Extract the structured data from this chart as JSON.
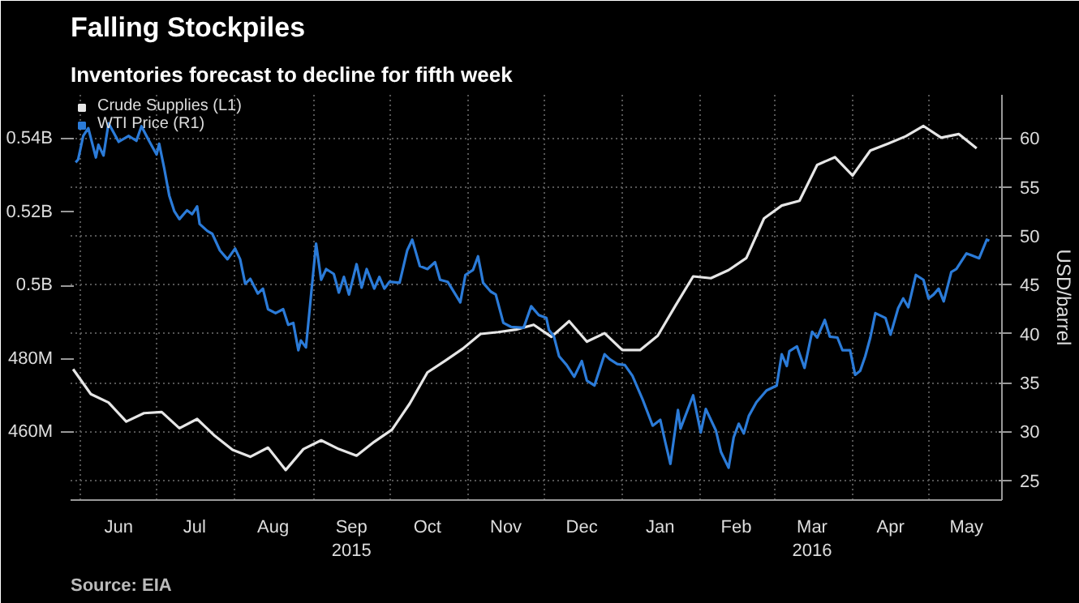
{
  "chart_data": {
    "type": "line",
    "title": "Falling Stockpiles",
    "subtitle": "Inventories forecast to decline for fifth week",
    "y2label": "USD/barrel",
    "annotations": [
      "Source: EIA"
    ],
    "legend": "top left",
    "grid": true,
    "line_style": "solid",
    "marker": "none",
    "xlim": [
      "2015-05-28",
      "2016-05-30"
    ],
    "xticks": [
      {
        "value": "2015-06-01",
        "label": null
      },
      {
        "value": "2015-06-16",
        "label": "Jun"
      },
      {
        "value": "2015-07-01",
        "label": null
      },
      {
        "value": "2015-07-16",
        "label": "Jul"
      },
      {
        "value": "2015-08-01",
        "label": null
      },
      {
        "value": "2015-08-16",
        "label": "Aug"
      },
      {
        "value": "2015-09-01",
        "label": null
      },
      {
        "value": "2015-09-16",
        "label": "Sep\n2015"
      },
      {
        "value": "2015-10-01",
        "label": null
      },
      {
        "value": "2015-10-16",
        "label": "Oct"
      },
      {
        "value": "2015-11-01",
        "label": null
      },
      {
        "value": "2015-11-16",
        "label": "Nov"
      },
      {
        "value": "2015-12-01",
        "label": null
      },
      {
        "value": "2015-12-16",
        "label": "Dec"
      },
      {
        "value": "2016-01-01",
        "label": null
      },
      {
        "value": "2016-01-16",
        "label": "Jan"
      },
      {
        "value": "2016-02-01",
        "label": null
      },
      {
        "value": "2016-02-15",
        "label": "Feb"
      },
      {
        "value": "2016-03-01",
        "label": null
      },
      {
        "value": "2016-03-16",
        "label": "Mar\n2016"
      },
      {
        "value": "2016-04-01",
        "label": null
      },
      {
        "value": "2016-04-16",
        "label": "Apr"
      },
      {
        "value": "2016-05-01",
        "label": null
      },
      {
        "value": "2016-05-16",
        "label": "May"
      }
    ],
    "ylim": [
      441500000,
      552000000
    ],
    "yticks": [
      {
        "value": 460000000,
        "label": "460M"
      },
      {
        "value": 480000000,
        "label": "480M"
      },
      {
        "value": 500000000,
        "label": "0.5B"
      },
      {
        "value": 520000000,
        "label": "0.52B"
      },
      {
        "value": 540000000,
        "label": "0.54B"
      }
    ],
    "y2lim": [
      23,
      64.4
    ],
    "y2ticks": [
      25,
      30,
      35,
      40,
      45,
      50,
      55,
      60
    ],
    "series": [
      {
        "name": "Crude Supplies (L1)",
        "color": "#e6e6e6",
        "x": [
          "2015-05-29",
          "2015-06-05",
          "2015-06-12",
          "2015-06-19",
          "2015-06-26",
          "2015-07-03",
          "2015-07-10",
          "2015-07-17",
          "2015-07-24",
          "2015-07-31",
          "2015-08-07",
          "2015-08-14",
          "2015-08-21",
          "2015-08-28",
          "2015-09-04",
          "2015-09-11",
          "2015-09-18",
          "2015-09-25",
          "2015-10-02",
          "2015-10-09",
          "2015-10-16",
          "2015-10-23",
          "2015-10-30",
          "2015-11-06",
          "2015-11-13",
          "2015-11-20",
          "2015-11-27",
          "2015-12-04",
          "2015-12-11",
          "2015-12-18",
          "2015-12-25",
          "2016-01-01",
          "2016-01-08",
          "2016-01-15",
          "2016-01-22",
          "2016-01-29",
          "2016-02-05",
          "2016-02-12",
          "2016-02-19",
          "2016-02-26",
          "2016-03-04",
          "2016-03-11",
          "2016-03-18",
          "2016-03-25",
          "2016-04-01",
          "2016-04-08",
          "2016-04-15",
          "2016-04-22",
          "2016-04-29",
          "2016-05-06",
          "2016-05-13",
          "2016-05-20"
        ],
        "values": [
          477200000,
          470400000,
          468100000,
          462900000,
          465200000,
          465500000,
          461100000,
          463600000,
          459000000,
          455200000,
          453300000,
          455800000,
          449700000,
          455400000,
          457800000,
          455400000,
          453600000,
          457400000,
          460700000,
          467800000,
          476300000,
          479500000,
          482800000,
          486800000,
          487300000,
          488000000,
          489300000,
          486000000,
          490300000,
          484700000,
          487000000,
          482400000,
          482400000,
          486300000,
          494500000,
          502500000,
          502000000,
          504200000,
          507500000,
          518300000,
          521800000,
          523100000,
          532900000,
          535000000,
          530000000,
          536800000,
          538700000,
          540700000,
          543500000,
          540300000,
          541300000,
          537400000
        ]
      },
      {
        "name": "WTI Price (R1)",
        "color": "#2b7bd8",
        "axis": "y2",
        "x": [
          "2015-05-30",
          "2015-05-31",
          "2015-06-02",
          "2015-06-04",
          "2015-06-07",
          "2015-06-08",
          "2015-06-10",
          "2015-06-12",
          "2015-06-16",
          "2015-06-20",
          "2015-06-23",
          "2015-06-25",
          "2015-06-28",
          "2015-07-01",
          "2015-07-02",
          "2015-07-04",
          "2015-07-06",
          "2015-07-08",
          "2015-07-10",
          "2015-07-13",
          "2015-07-15",
          "2015-07-17",
          "2015-07-18",
          "2015-07-21",
          "2015-07-23",
          "2015-07-26",
          "2015-07-29",
          "2015-08-01",
          "2015-08-03",
          "2015-08-05",
          "2015-08-07",
          "2015-08-10",
          "2015-08-12",
          "2015-08-14",
          "2015-08-17",
          "2015-08-20",
          "2015-08-22",
          "2015-08-24",
          "2015-08-26",
          "2015-08-27",
          "2015-08-29",
          "2015-09-02",
          "2015-09-04",
          "2015-09-06",
          "2015-09-09",
          "2015-09-11",
          "2015-09-13",
          "2015-09-15",
          "2015-09-18",
          "2015-09-20",
          "2015-09-22",
          "2015-09-25",
          "2015-09-27",
          "2015-09-29",
          "2015-10-01",
          "2015-10-05",
          "2015-10-08",
          "2015-10-10",
          "2015-10-13",
          "2015-10-16",
          "2015-10-19",
          "2015-10-21",
          "2015-10-24",
          "2015-10-29",
          "2015-10-31",
          "2015-11-03",
          "2015-11-05",
          "2015-11-07",
          "2015-11-10",
          "2015-11-12",
          "2015-11-15",
          "2015-11-18",
          "2015-11-23",
          "2015-11-26",
          "2015-11-29",
          "2015-12-02",
          "2015-12-03",
          "2015-12-05",
          "2015-12-07",
          "2015-12-10",
          "2015-12-13",
          "2015-12-16",
          "2015-12-18",
          "2015-12-21",
          "2015-12-25",
          "2015-12-27",
          "2015-12-30",
          "2016-01-02",
          "2016-01-05",
          "2016-01-09",
          "2016-01-13",
          "2016-01-16",
          "2016-01-18",
          "2016-01-20",
          "2016-01-23",
          "2016-01-24",
          "2016-01-29",
          "2016-02-01",
          "2016-02-03",
          "2016-02-07",
          "2016-02-09",
          "2016-02-12",
          "2016-02-14",
          "2016-02-16",
          "2016-02-18",
          "2016-02-20",
          "2016-02-23",
          "2016-02-27",
          "2016-03-02",
          "2016-03-04",
          "2016-03-06",
          "2016-03-07",
          "2016-03-10",
          "2016-03-13",
          "2016-03-16",
          "2016-03-18",
          "2016-03-21",
          "2016-03-23",
          "2016-03-26",
          "2016-03-28",
          "2016-03-31",
          "2016-04-02",
          "2016-04-04",
          "2016-04-06",
          "2016-04-08",
          "2016-04-10",
          "2016-04-14",
          "2016-04-16",
          "2016-04-19",
          "2016-04-21",
          "2016-04-23",
          "2016-04-26",
          "2016-04-29",
          "2016-05-01",
          "2016-05-03",
          "2016-05-05",
          "2016-05-07",
          "2016-05-10",
          "2016-05-12",
          "2016-05-16",
          "2016-05-18",
          "2016-05-21",
          "2016-05-24",
          "2016-05-25"
        ],
        "values": [
          57.5,
          57.8,
          60.2,
          61.0,
          58.0,
          59.3,
          58.2,
          61.5,
          59.6,
          60.2,
          59.7,
          61.2,
          59.7,
          58.3,
          59.4,
          56.9,
          54.1,
          52.5,
          51.7,
          52.6,
          52.2,
          53.0,
          51.2,
          50.5,
          50.2,
          48.5,
          47.6,
          48.7,
          47.6,
          45.1,
          45.6,
          44.1,
          44.6,
          42.5,
          42.1,
          42.5,
          40.9,
          41.1,
          38.3,
          39.3,
          38.6,
          49.2,
          45.5,
          46.6,
          46.1,
          44.2,
          45.8,
          44.0,
          47.1,
          44.7,
          46.6,
          44.6,
          45.8,
          44.6,
          45.3,
          45.2,
          48.5,
          49.6,
          46.9,
          46.6,
          47.3,
          45.5,
          45.3,
          43.2,
          46.0,
          46.5,
          47.9,
          45.2,
          44.3,
          44.0,
          41.1,
          40.7,
          40.6,
          42.8,
          41.9,
          41.6,
          40.4,
          39.7,
          37.7,
          36.8,
          35.6,
          37.2,
          35.2,
          34.7,
          37.9,
          37.4,
          36.9,
          36.8,
          35.7,
          33.3,
          30.6,
          31.2,
          28.9,
          26.7,
          32.2,
          30.3,
          33.7,
          29.9,
          32.3,
          30.1,
          27.9,
          26.3,
          29.4,
          30.8,
          29.8,
          31.6,
          33.0,
          34.2,
          34.7,
          37.9,
          36.7,
          38.2,
          38.7,
          36.5,
          40.2,
          39.6,
          41.4,
          39.7,
          39.6,
          38.3,
          38.3,
          35.8,
          36.2,
          37.7,
          39.6,
          42.1,
          41.6,
          39.9,
          42.6,
          43.6,
          42.7,
          46.0,
          45.5,
          43.6,
          44.0,
          44.6,
          43.3,
          46.3,
          46.6,
          48.2,
          48.0,
          47.7,
          49.6,
          49.5
        ]
      }
    ]
  }
}
